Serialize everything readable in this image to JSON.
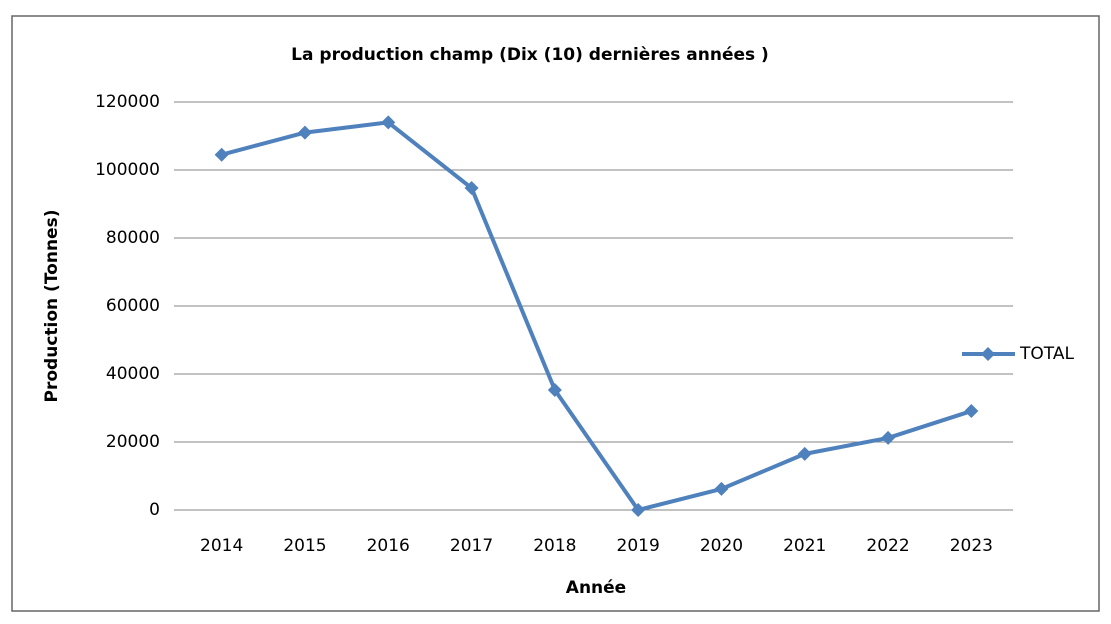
{
  "chart_data": {
    "type": "line",
    "title": "La production champ (Dix (10) dernières années )",
    "x_label": "Année",
    "y_label": "Production (Tonnes)",
    "categories": [
      "2014",
      "2015",
      "2016",
      "2017",
      "2018",
      "2019",
      "2020",
      "2021",
      "2022",
      "2023"
    ],
    "series": [
      {
        "name": "TOTAL",
        "color": "#4f81bd",
        "values": [
          104500,
          111000,
          114000,
          94700,
          35300,
          0,
          6200,
          16500,
          21200,
          29100
        ]
      }
    ],
    "ylim": [
      0,
      120000
    ],
    "yticks": [
      0,
      20000,
      40000,
      60000,
      80000,
      100000,
      120000
    ],
    "grid": true,
    "legend": "right"
  }
}
